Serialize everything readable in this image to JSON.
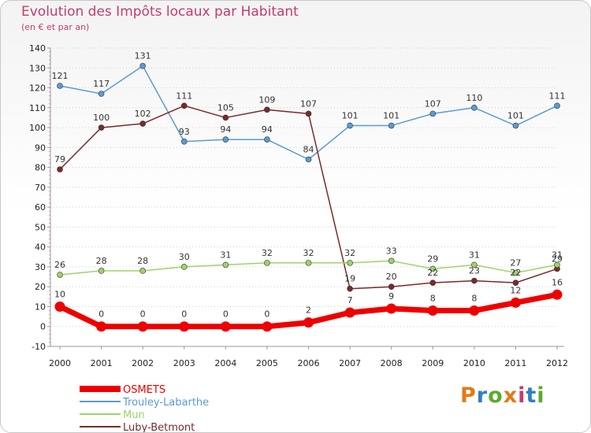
{
  "header": {
    "title": "Evolution des Impôts locaux par Habitant",
    "subtitle": "(en € et par an)"
  },
  "brand": {
    "text": "Proxiti",
    "colors": [
      "#e07b1a",
      "#2e7fc2",
      "#5aaa2e",
      "#e07b1a",
      "#c33b6e",
      "#2e7fc2",
      "#5aaa2e"
    ]
  },
  "chart_data": {
    "type": "line",
    "title": "Evolution des Impôts locaux par Habitant",
    "subtitle": "(en € et par an)",
    "xlabel": "",
    "ylabel": "",
    "x": [
      "2000",
      "2001",
      "2002",
      "2003",
      "2004",
      "2005",
      "2006",
      "2007",
      "2008",
      "2009",
      "2010",
      "2011",
      "2012"
    ],
    "ylim": [
      -10,
      140
    ],
    "yticks": [
      -10,
      0,
      10,
      20,
      30,
      40,
      50,
      60,
      70,
      80,
      90,
      100,
      110,
      120,
      130,
      140
    ],
    "grid": "horizontal dotted",
    "legend": "bottom-left",
    "series": [
      {
        "name": "Trouley-Labarthe",
        "color": "#5a9bd4",
        "values": [
          121,
          117,
          131,
          93,
          94,
          94,
          84,
          101,
          101,
          107,
          110,
          101,
          111
        ],
        "labels": [
          "121",
          "117",
          "131",
          "93",
          "94",
          "94",
          "84",
          "101",
          "101",
          "107",
          "110",
          "101",
          "111"
        ]
      },
      {
        "name": "Luby-Betmont",
        "color": "#7a2a2a",
        "values": [
          79,
          100,
          102,
          111,
          105,
          109,
          107,
          19,
          20,
          22,
          23,
          22,
          29
        ],
        "labels": [
          "79",
          "100",
          "102",
          "111",
          "105",
          "109",
          "107",
          "19",
          "20",
          "22",
          "23",
          "22",
          "29"
        ]
      },
      {
        "name": "Mun",
        "color": "#9ed36a",
        "values": [
          26,
          28,
          28,
          30,
          31,
          32,
          32,
          32,
          33,
          29,
          31,
          27,
          31
        ],
        "labels": [
          "26",
          "28",
          "28",
          "30",
          "31",
          "32",
          "32",
          "32",
          "33",
          "29",
          "31",
          "27",
          "31"
        ]
      },
      {
        "name": "OSMETS",
        "color": "#ee0000",
        "values": [
          10,
          0,
          0,
          0,
          0,
          0,
          2,
          7,
          9,
          8,
          8,
          12,
          16
        ],
        "labels": [
          "10",
          "0",
          "0",
          "0",
          "0",
          "0",
          "2",
          "7",
          "9",
          "8",
          "8",
          "12",
          "16"
        ]
      }
    ],
    "legend_order": [
      "OSMETS",
      "Trouley-Labarthe",
      "Mun",
      "Luby-Betmont"
    ]
  }
}
